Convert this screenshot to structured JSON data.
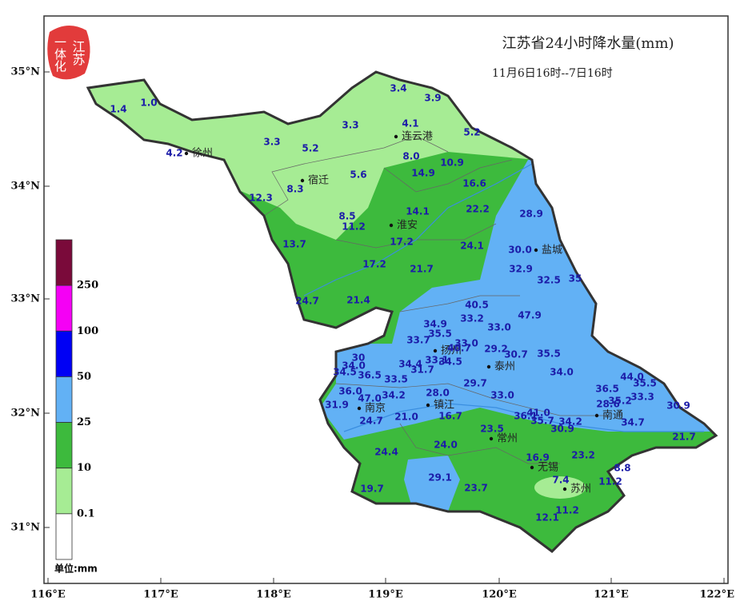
{
  "title": "江苏省24小时降水量(mm)",
  "subtitle": "11月6日16时--7日16时",
  "logo": [
    "江苏",
    "一体化"
  ],
  "lat_labels": [
    "35°N",
    "34°N",
    "33°N",
    "32°N",
    "31°N"
  ],
  "lon_labels": [
    "116°E",
    "117°E",
    "118°E",
    "119°E",
    "120°E",
    "121°E",
    "122°E"
  ],
  "legend": {
    "colors": [
      "#ffffff",
      "#a6ec94",
      "#3dba3d",
      "#62b1f5",
      "#0000f5",
      "#f500f5",
      "#7a0a3a"
    ],
    "labels": [
      "0.1",
      "10",
      "25",
      "50",
      "100",
      "250"
    ],
    "unit": "单位:mm"
  },
  "cities": [
    "徐州",
    "连云港",
    "宿迁",
    "淮安",
    "盐城",
    "扬州",
    "泰州",
    "南京",
    "镇江",
    "南通",
    "常州",
    "无锡",
    "苏州"
  ],
  "stations": [
    "1.4",
    "1.0",
    "3.4",
    "3.9",
    "4.1",
    "3.3",
    "5.2",
    "3.3",
    "5.2",
    "4.2",
    "8.0",
    "10.9",
    "14.9",
    "5.6",
    "8.3",
    "16.6",
    "12.3",
    "14.1",
    "22.2",
    "28.9",
    "8.5",
    "11.2",
    "17.2",
    "24.1",
    "30.0",
    "13.7",
    "17.2",
    "21.7",
    "32.9",
    "32.5",
    "35",
    "24.7",
    "21.4",
    "40.5",
    "33.2",
    "47.9",
    "34.9",
    "33.0",
    "35.5",
    "33.7",
    "33.0",
    "40.7",
    "29.2",
    "30.7",
    "35.5",
    "30",
    "34.0",
    "34.4",
    "33.1",
    "34.5",
    "31.7",
    "34.5",
    "36.5",
    "33.5",
    "34.0",
    "44.0",
    "35.5",
    "36.5",
    "35.2",
    "33.3",
    "29.7",
    "36.0",
    "47.0",
    "34.2",
    "28.0",
    "33.0",
    "31.9",
    "28.6",
    "30.9",
    "16.7",
    "24.7",
    "21.0",
    "36.1",
    "41.0",
    "35.7",
    "34.2",
    "30.9",
    "34.7",
    "23.5",
    "24.0",
    "21.7",
    "24.4",
    "16.9",
    "23.2",
    "8.8",
    "29.1",
    "23.7",
    "7.4",
    "11.2",
    "19.7",
    "11.2",
    "12.1"
  ]
}
